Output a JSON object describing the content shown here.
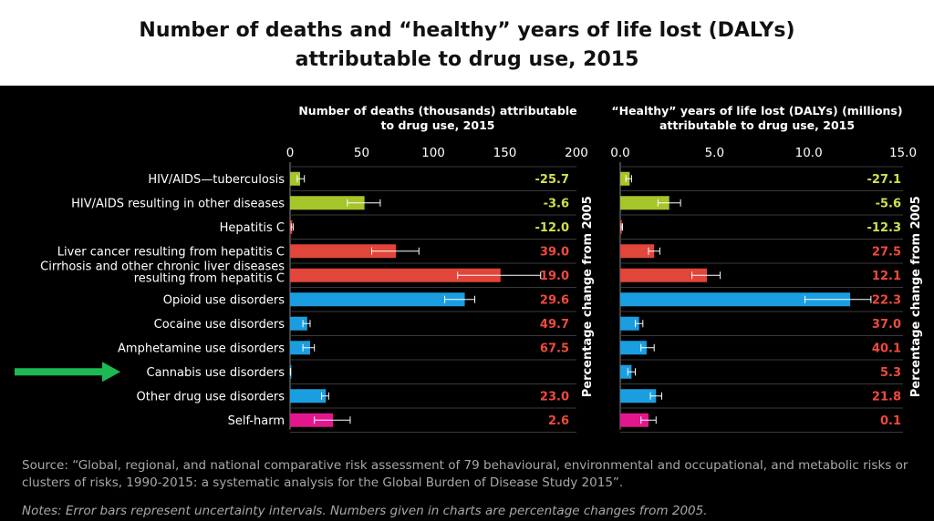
{
  "title_line1": "Number of deaths and “healthy” years of life lost (DALYs)",
  "title_line2": "attributable to drug use, 2015",
  "colors": {
    "hiv": "#a6c52a",
    "hep": "#e2453a",
    "drug": "#1b9ee0",
    "harm": "#e3178b",
    "label_text": "#ffffff"
  },
  "chart_data": [
    {
      "type": "bar",
      "title_line1": "Number of deaths (thousands) attributable",
      "title_line2": "to drug use, 2015",
      "side_label": "Percentage change from 2005",
      "xlim": [
        0,
        200
      ],
      "ticks": [
        "0",
        "50",
        "100",
        "150",
        "200"
      ],
      "categories": [
        "HIV/AIDS—tuberculosis",
        "HIV/AIDS resulting in other diseases",
        "Hepatitis C",
        "Liver cancer resulting from hepatitis C",
        "Cirrhosis and other chronic liver diseases resulting from hepatitis C",
        "Opioid use disorders",
        "Cocaine use disorders",
        "Amphetamine use disorders",
        "Cannabis use disorders",
        "Other drug use disorders",
        "Self-harm"
      ],
      "values": [
        7,
        52,
        1.5,
        74,
        147,
        122,
        12,
        14,
        0.3,
        25,
        30
      ],
      "err_low": [
        5,
        40,
        0.8,
        57,
        117,
        108,
        9,
        9,
        0.2,
        22,
        17
      ],
      "err_high": [
        10,
        63,
        2.2,
        90,
        175,
        129,
        14,
        17,
        0.4,
        27,
        42
      ],
      "pct_labels": [
        "-25.7",
        "-3.6",
        "-12.0",
        "39.0",
        "19.0",
        "29.6",
        "49.7",
        "67.5",
        "",
        "23.0",
        "2.6"
      ]
    },
    {
      "type": "bar",
      "title_line1": "“Healthy” years of life lost (DALYs) (millions)",
      "title_line2": "attributable to drug use, 2015",
      "side_label": "Percentage change from 2005",
      "xlim": [
        0,
        15
      ],
      "ticks": [
        "0.0",
        "5.0",
        "10.0",
        "15.0"
      ],
      "values": [
        0.5,
        2.6,
        0.08,
        1.8,
        4.6,
        12.2,
        1.0,
        1.4,
        0.6,
        1.9,
        1.5
      ],
      "err_low": [
        0.3,
        2.0,
        0.05,
        1.5,
        3.8,
        9.8,
        0.8,
        1.1,
        0.4,
        1.6,
        1.1
      ],
      "err_high": [
        0.6,
        3.2,
        0.12,
        2.1,
        5.3,
        13.3,
        1.2,
        1.8,
        0.8,
        2.2,
        1.9
      ],
      "pct_labels": [
        "-27.1",
        "-5.6",
        "-12.3",
        "27.5",
        "12.1",
        "22.3",
        "37.0",
        "40.1",
        "5.3",
        "21.8",
        "0.1"
      ]
    }
  ],
  "source": "Source: “Global, regional, and national comparative risk assessment of 79 behavioural, environmental and occupational, and metabolic risks or clusters of risks, 1990-2015: a systematic analysis for the Global Burden of Disease Study 2015”.",
  "notes": "Notes: Error bars represent uncertainty intervals. Numbers given in charts are percentage changes from 2005."
}
